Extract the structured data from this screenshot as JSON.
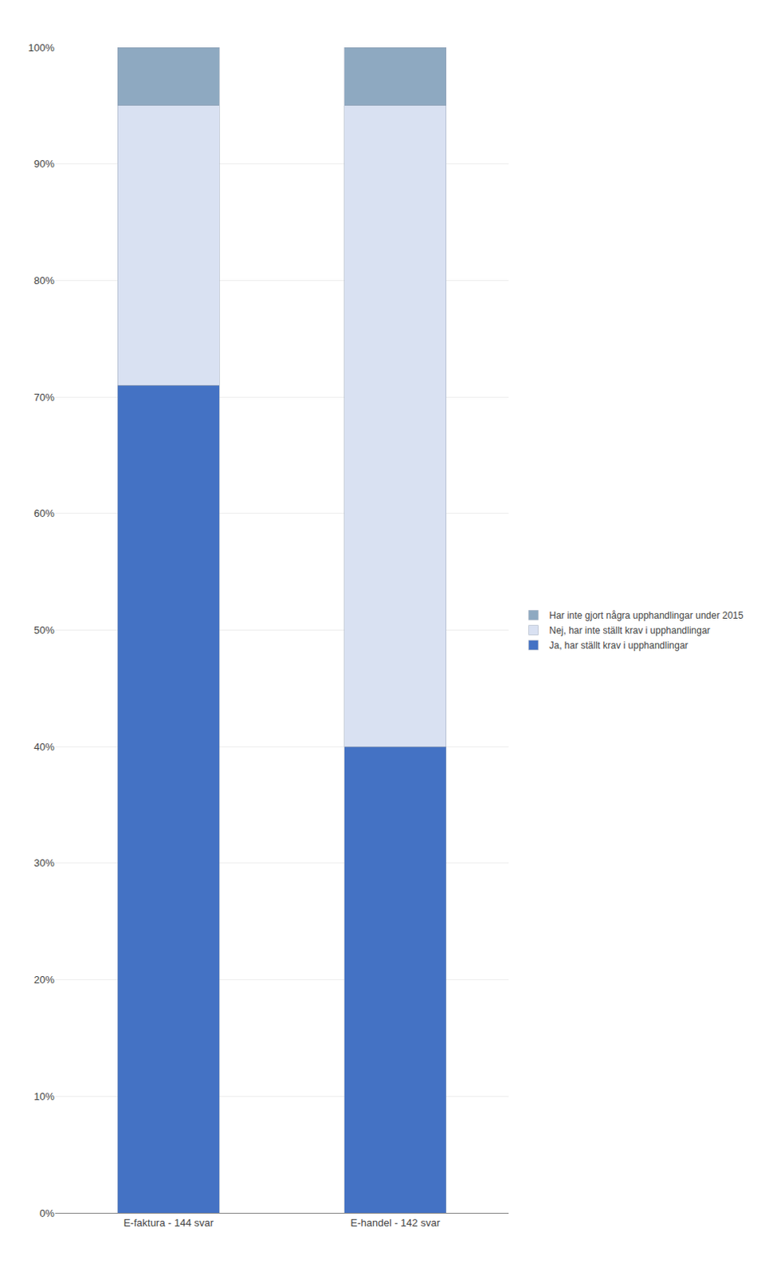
{
  "chart_data": {
    "type": "bar",
    "stacked": true,
    "categories": [
      "E-faktura - 144 svar",
      "E-handel - 142 svar"
    ],
    "series": [
      {
        "name": "Ja, har ställt krav i upphandlingar",
        "color": "#4472C4",
        "values": [
          71,
          40
        ]
      },
      {
        "name": "Nej, har inte ställt krav i upphandlingar",
        "color": "#D9E1F2",
        "values": [
          24,
          55
        ]
      },
      {
        "name": "Har inte gjort några upphandlingar under 2015",
        "color": "#8EA9C1",
        "values": [
          5,
          5
        ]
      }
    ],
    "ylim": [
      0,
      100
    ],
    "yticks": [
      {
        "value": 0,
        "label": "0%"
      },
      {
        "value": 10,
        "label": "10%"
      },
      {
        "value": 20,
        "label": "20%"
      },
      {
        "value": 30,
        "label": "30%"
      },
      {
        "value": 40,
        "label": "40%"
      },
      {
        "value": 50,
        "label": "50%"
      },
      {
        "value": 60,
        "label": "60%"
      },
      {
        "value": 70,
        "label": "70%"
      },
      {
        "value": 80,
        "label": "80%"
      },
      {
        "value": 90,
        "label": "90%"
      },
      {
        "value": 100,
        "label": "100%"
      }
    ],
    "grid": true,
    "legend": "right"
  }
}
